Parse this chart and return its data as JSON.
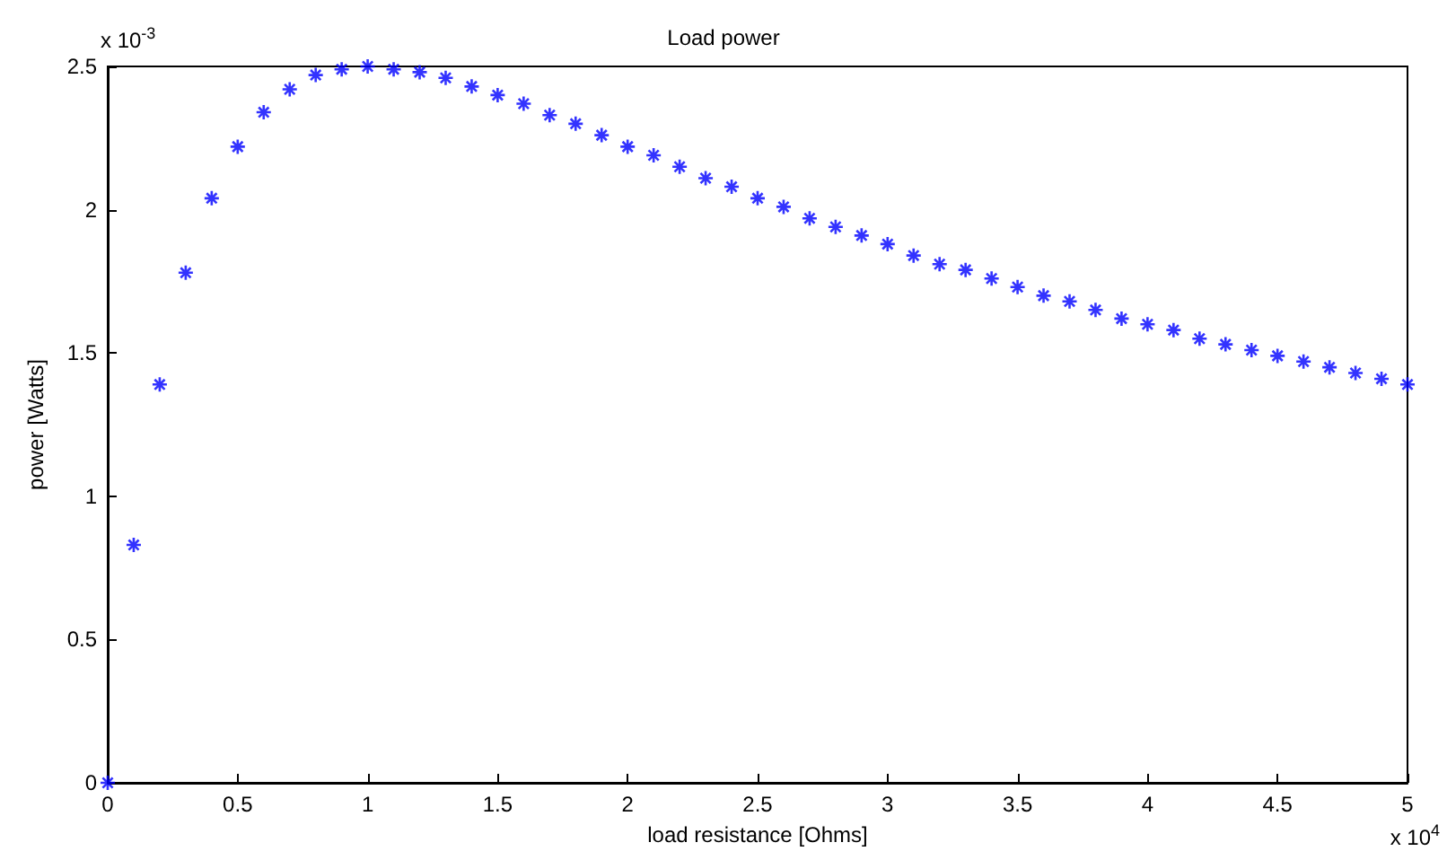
{
  "chart_data": {
    "type": "scatter",
    "title": "Load power",
    "xlabel": "load resistance [Ohms]",
    "ylabel": "power [Watts]",
    "annotations": [
      "x 10$^{-3}$",
      "x 10$^{4}$"
    ],
    "x": [
      0,
      0.1,
      0.2,
      0.3,
      0.4,
      0.5,
      0.6,
      0.7,
      0.8,
      0.9,
      1,
      1.1,
      1.2,
      1.3,
      1.4,
      1.5,
      1.6,
      1.7,
      1.8,
      1.9,
      2,
      2.1,
      2.2,
      2.3,
      2.4,
      2.5,
      2.6,
      2.7,
      2.8,
      2.9,
      3,
      3.1,
      3.2,
      3.3,
      3.4,
      3.5,
      3.6,
      3.7,
      3.8,
      3.9,
      4,
      4.1,
      4.2,
      4.3,
      4.4,
      4.5,
      4.6,
      4.7,
      4.8,
      4.9,
      5
    ],
    "series": [
      {
        "color": "#0000ff",
        "values": [
          0,
          0.83,
          1.39,
          1.78,
          2.04,
          2.22,
          2.34,
          2.42,
          2.47,
          2.49,
          2.5,
          2.49,
          2.48,
          2.46,
          2.43,
          2.4,
          2.37,
          2.33,
          2.3,
          2.26,
          2.22,
          2.19,
          2.15,
          2.11,
          2.08,
          2.04,
          2.01,
          1.97,
          1.94,
          1.91,
          1.88,
          1.84,
          1.81,
          1.79,
          1.76,
          1.73,
          1.7,
          1.68,
          1.65,
          1.62,
          1.6,
          1.58,
          1.55,
          1.53,
          1.51,
          1.49,
          1.47,
          1.45,
          1.43,
          1.41,
          1.39
        ]
      }
    ],
    "xlim": [
      0,
      5
    ],
    "xticks": [
      0,
      0.5,
      1,
      1.5,
      2,
      2.5,
      3,
      3.5,
      4,
      4.5,
      5
    ],
    "ylim": [
      0,
      2.5
    ],
    "yticks": [
      0,
      0.5,
      1,
      1.5,
      2,
      2.5
    ],
    "marker": "cross",
    "grid": false
  }
}
